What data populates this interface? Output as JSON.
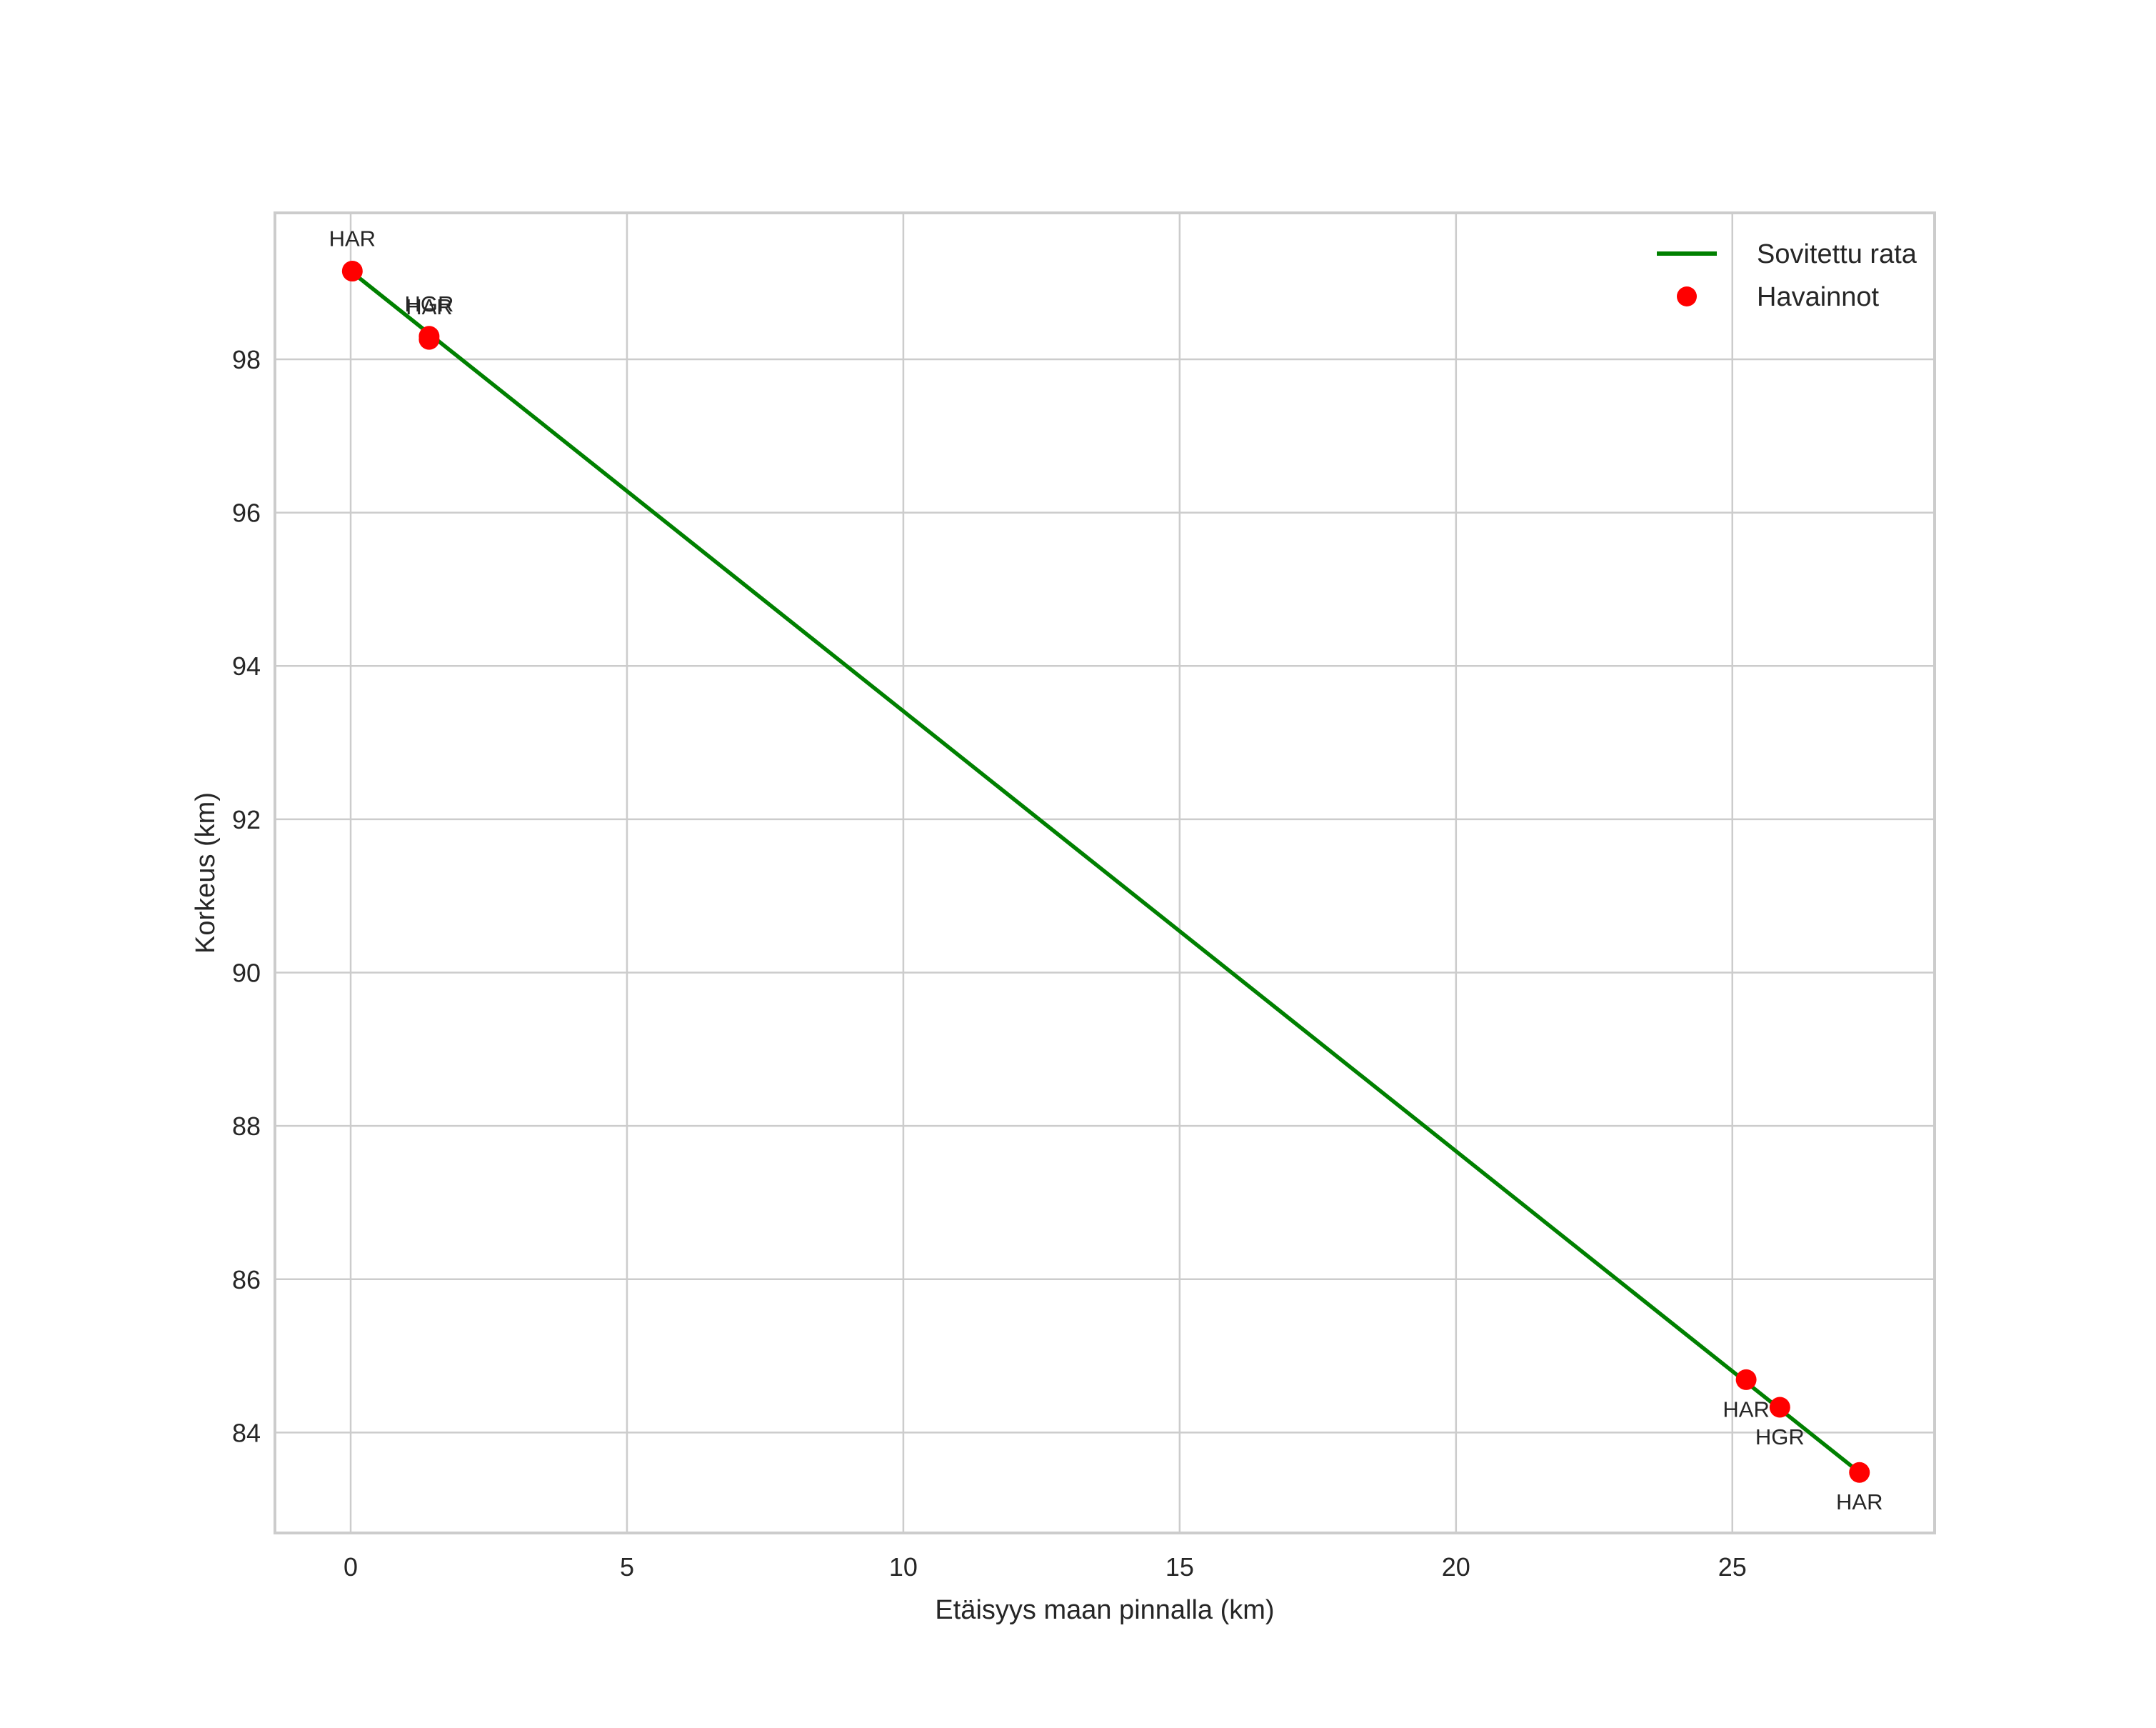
{
  "chart_data": {
    "type": "line",
    "title": "",
    "xlabel": "Etäisyys maan pinnalla (km)",
    "ylabel": "Korkeus (km)",
    "xlim": [
      -1.37,
      28.66
    ],
    "ylim": [
      82.69,
      99.91
    ],
    "xticks": [
      0,
      5,
      10,
      15,
      20,
      25
    ],
    "yticks": [
      84,
      86,
      88,
      90,
      92,
      94,
      96,
      98
    ],
    "grid": true,
    "legend_position": "upper right",
    "series": [
      {
        "name": "Sovitettu rata",
        "kind": "line",
        "color": "#008000",
        "x": [
          0.0,
          27.3
        ],
        "y": [
          99.15,
          83.48
        ]
      },
      {
        "name": "Havainnot",
        "kind": "scatter",
        "color": "#ff0000",
        "points": [
          {
            "x": 0.03,
            "y": 99.15,
            "label": "HAR",
            "label_pos": "above"
          },
          {
            "x": 1.42,
            "y": 98.3,
            "label": "HGR",
            "label_pos": "above"
          },
          {
            "x": 1.42,
            "y": 98.26,
            "label": "HAR",
            "label_pos": "above"
          },
          {
            "x": 25.25,
            "y": 84.69,
            "label": "HAR",
            "label_pos": "below"
          },
          {
            "x": 25.86,
            "y": 84.33,
            "label": "HGR",
            "label_pos": "below"
          },
          {
            "x": 27.3,
            "y": 83.48,
            "label": "HAR",
            "label_pos": "below"
          }
        ]
      }
    ]
  },
  "legend": {
    "items": [
      {
        "label": "Sovitettu rata",
        "symbol": "line",
        "color": "#008000"
      },
      {
        "label": "Havainnot",
        "symbol": "dot",
        "color": "#ff0000"
      }
    ]
  },
  "colors": {
    "grid": "#cccccc",
    "spine": "#cccccc",
    "text": "#262626"
  }
}
